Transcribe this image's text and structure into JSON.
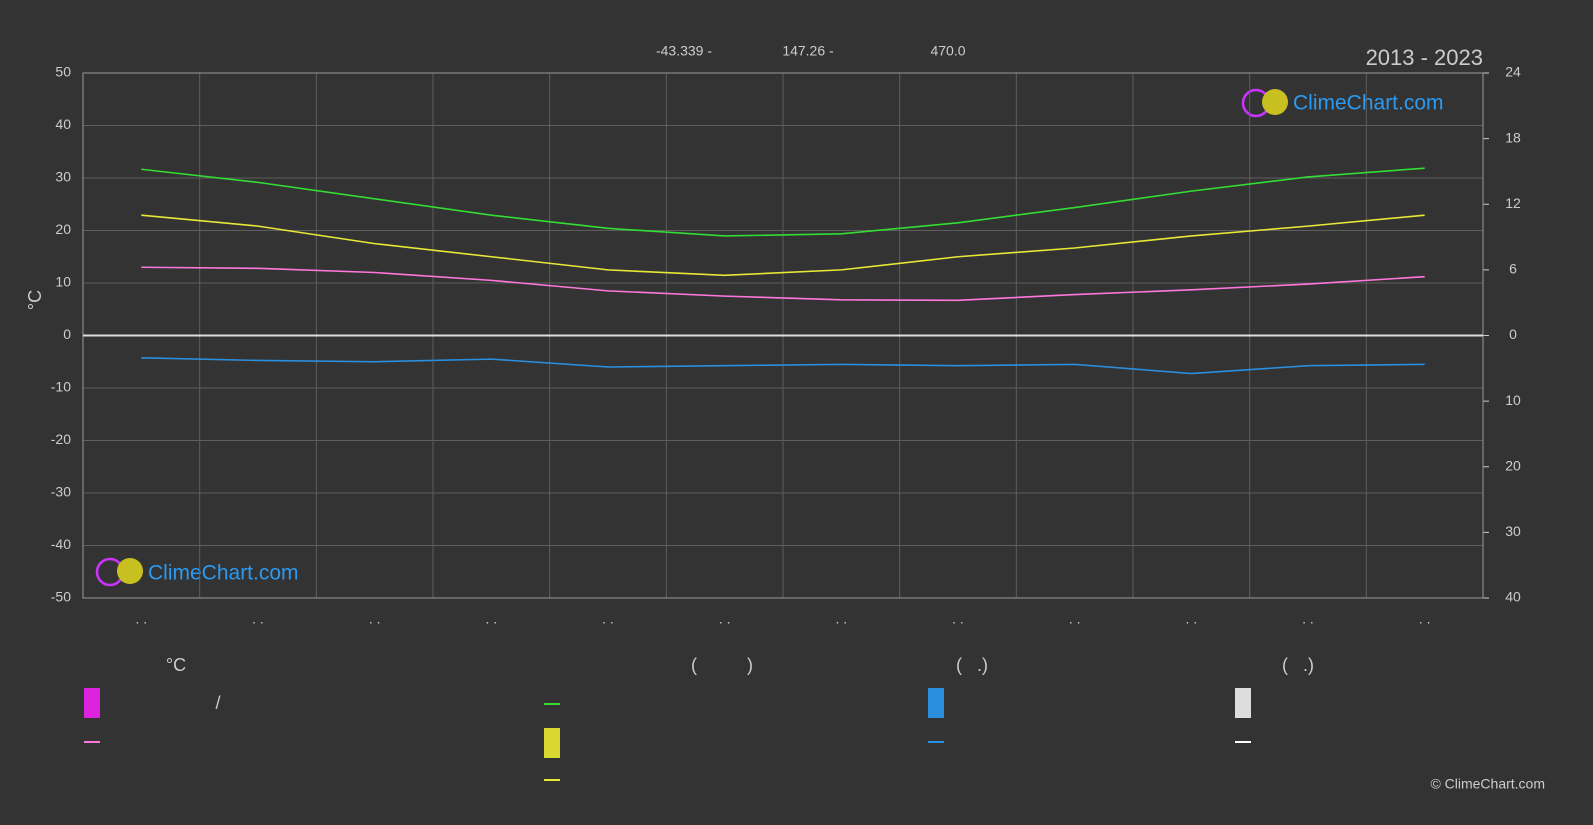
{
  "chart_data": {
    "type": "line",
    "title": "2013 - 2023",
    "header": [
      "-43.339 -",
      "147.26 -",
      "470.0"
    ],
    "ylabel": "°C",
    "watermark": "ClimeChart.com",
    "copyright": "© ClimeChart.com",
    "categories": [
      ". .",
      ". .",
      ". .",
      ". .",
      ". .",
      ". .",
      ". .",
      ". .",
      ". .",
      ". .",
      ". .",
      ". ."
    ],
    "ylim": [
      -50,
      50
    ],
    "yticks": [
      -50,
      -40,
      -30,
      -20,
      -10,
      0,
      10,
      20,
      30,
      40,
      50
    ],
    "y2lim": [
      0,
      24
    ],
    "y2ticks": [
      0,
      6,
      12,
      18,
      24
    ],
    "y3lim": [
      0,
      40
    ],
    "y3ticks": [
      10,
      20,
      30,
      40
    ],
    "grid": true,
    "series": [
      {
        "color": "#33dd33",
        "axis": "y2",
        "values": [
          15.2,
          14.0,
          12.5,
          11.0,
          9.8,
          9.1,
          9.3,
          10.3,
          11.7,
          13.2,
          14.5,
          15.3
        ]
      },
      {
        "color": "#e8e838",
        "axis": "y2",
        "values": [
          11.0,
          10.0,
          8.4,
          7.2,
          6.0,
          5.5,
          6.0,
          7.2,
          8.0,
          9.1,
          10.0,
          11.0
        ]
      },
      {
        "color": "#ff77dd",
        "values": [
          13.0,
          12.8,
          12.0,
          10.5,
          8.5,
          7.5,
          6.8,
          6.7,
          7.8,
          8.7,
          9.8,
          11.2
        ]
      },
      {
        "color": "#2b8fe0",
        "axis": "y3",
        "values": [
          3.4,
          3.8,
          4.0,
          3.6,
          4.8,
          4.6,
          4.4,
          4.6,
          4.4,
          5.8,
          4.6,
          4.4
        ]
      }
    ],
    "legend": {
      "headers": [
        "°C",
        "(          )",
        "(   .)",
        "(   .)"
      ],
      "extra": "/"
    }
  }
}
